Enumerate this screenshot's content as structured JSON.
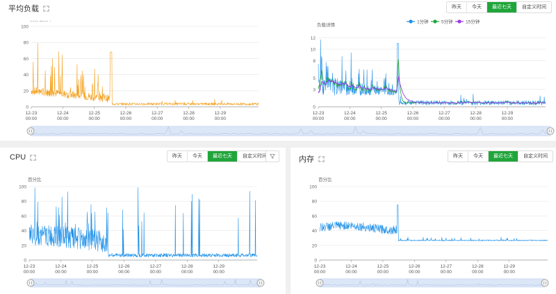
{
  "buttons": {
    "yesterday": "昨天",
    "today": "今天",
    "last7": "最近七天",
    "custom": "自定义时间"
  },
  "panels": {
    "load": {
      "title": "平均负载",
      "left_label": "资源使用率",
      "right_label": "负载详情"
    },
    "cpu": {
      "title": "CPU",
      "y_label": "百分比"
    },
    "mem": {
      "title": "内存",
      "y_label": "百分比"
    }
  },
  "colors": {
    "orange": "#f39c12",
    "blue": "#1e90e8",
    "green": "#20a53a",
    "purple": "#9b38e6",
    "accent": "#20a53a"
  },
  "chart_data": [
    {
      "type": "line",
      "id": "load-usage",
      "ylim": [
        0,
        100
      ],
      "yticks": [
        0,
        20,
        40,
        60,
        80,
        100
      ],
      "x": [
        "12-23 00:00",
        "12-24 00:00",
        "12-25 00:00",
        "12-26 00:00",
        "12-27 00:00",
        "12-28 00:00",
        "12-29 00:00"
      ],
      "series": [
        {
          "color": "#f39c12",
          "profile": "spiky-decay",
          "baseline": [
            12,
            3
          ],
          "spike": 70,
          "spike_at": 2.5
        }
      ]
    },
    {
      "type": "line",
      "id": "load-detail",
      "ylim": [
        0,
        13
      ],
      "yticks": [
        0,
        3,
        5,
        8,
        10,
        12
      ],
      "x": [
        "12-23 00:00",
        "12-24 00:00",
        "12-25 00:00",
        "12-26 00:00",
        "12-27 00:00",
        "12-28 00:00",
        "12-29 00:00"
      ],
      "legend_position": "top-right",
      "series": [
        {
          "name": "1分钟",
          "color": "#1e90e8"
        },
        {
          "name": "5分钟",
          "color": "#20a53a"
        },
        {
          "name": "15分钟",
          "color": "#9b38e6"
        }
      ]
    },
    {
      "type": "line",
      "id": "cpu",
      "ylim": [
        0,
        100
      ],
      "yticks": [
        0,
        20,
        40,
        60,
        80,
        100
      ],
      "x": [
        "12-23 00:00",
        "12-24 00:00",
        "12-25 00:00",
        "12-26 00:00",
        "12-27 00:00",
        "12-28 00:00",
        "12-29 00:00"
      ],
      "series": [
        {
          "color": "#1e90e8",
          "baseline": [
            35,
            8
          ],
          "spikes_to": 100
        }
      ]
    },
    {
      "type": "line",
      "id": "mem",
      "ylim": [
        0,
        100
      ],
      "yticks": [
        0,
        20,
        40,
        60,
        80,
        100
      ],
      "x": [
        "12-23 00:00",
        "12-24 00:00",
        "12-25 00:00",
        "12-26 00:00",
        "12-27 00:00",
        "12-28 00:00",
        "12-29 00:00"
      ],
      "series": [
        {
          "color": "#1e90e8",
          "before": [
            40,
            50
          ],
          "spike": 75,
          "after": [
            26,
            28
          ]
        }
      ]
    }
  ]
}
